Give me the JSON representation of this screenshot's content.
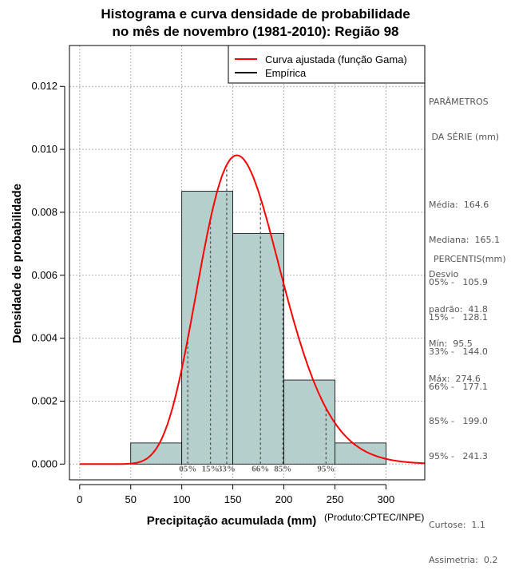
{
  "chart_data": {
    "type": "histogram",
    "title_line1": "Histograma e curva densidade de probabilidade",
    "title_line2": "no mês de novembro (1981-2010): Região 98",
    "xlabel": "Precipitação acumulada (mm)",
    "ylabel": "Densidade de probabilidade",
    "xlim": [
      -10,
      338
    ],
    "ylim": [
      -0.0005,
      0.0133
    ],
    "xticks": [
      0,
      50,
      100,
      150,
      200,
      250,
      300
    ],
    "yticks": [
      0.0,
      0.002,
      0.004,
      0.006,
      0.008,
      0.01,
      0.012
    ],
    "ytick_labels": [
      "0.000",
      "0.002",
      "0.004",
      "0.006",
      "0.008",
      "0.010",
      "0.012"
    ],
    "bins": [
      {
        "from": 50,
        "to": 100,
        "density": 0.00067
      },
      {
        "from": 100,
        "to": 150,
        "density": 0.00867
      },
      {
        "from": 150,
        "to": 200,
        "density": 0.00733
      },
      {
        "from": 200,
        "to": 250,
        "density": 0.00267
      },
      {
        "from": 250,
        "to": 300,
        "density": 0.00067
      }
    ],
    "gamma_fit": {
      "mean": 164.6,
      "sd": 41.8
    },
    "percentile_markers": [
      {
        "label": "05%",
        "value": 105.9
      },
      {
        "label": "15%",
        "value": 128.1
      },
      {
        "label": "33%",
        "value": 144.0
      },
      {
        "label": "66%",
        "value": 177.1
      },
      {
        "label": "85%",
        "value": 199.0
      },
      {
        "label": "95%",
        "value": 241.3
      }
    ],
    "legend": [
      {
        "label": "Curva ajustada (função Gama)",
        "color": "#ff0000"
      },
      {
        "label": "Empírica",
        "color": "#000000"
      }
    ],
    "colors": {
      "bar_fill": "#b5cfcd",
      "curve": "#ff0000",
      "grid": "#b0b0b0",
      "percentile_line": "#555555"
    }
  },
  "stats_panel": {
    "params_title_1": "PARÂMETROS",
    "params_title_2": " DA SÉRIE (mm)",
    "media": "Média:  164.6",
    "mediana": "Mediana:  165.1",
    "desvio": "Desvio",
    "padrao": "padrão:  41.8",
    "min": "Mín:  95.5",
    "max": "Máx:  274.6",
    "percentis_title": "PERCENTIS(mm)",
    "p05": "05% -   105.9",
    "p15": "15% -   128.1",
    "p33": "33% -   144.0",
    "p66": "66% -   177.1",
    "p85": "85% -   199.0",
    "p95": "95% -   241.3",
    "curtose": "Curtose:  1.1",
    "assimetria": "Assimetria:  0.2"
  },
  "credit": "(Produto:CPTEC/INPE)"
}
